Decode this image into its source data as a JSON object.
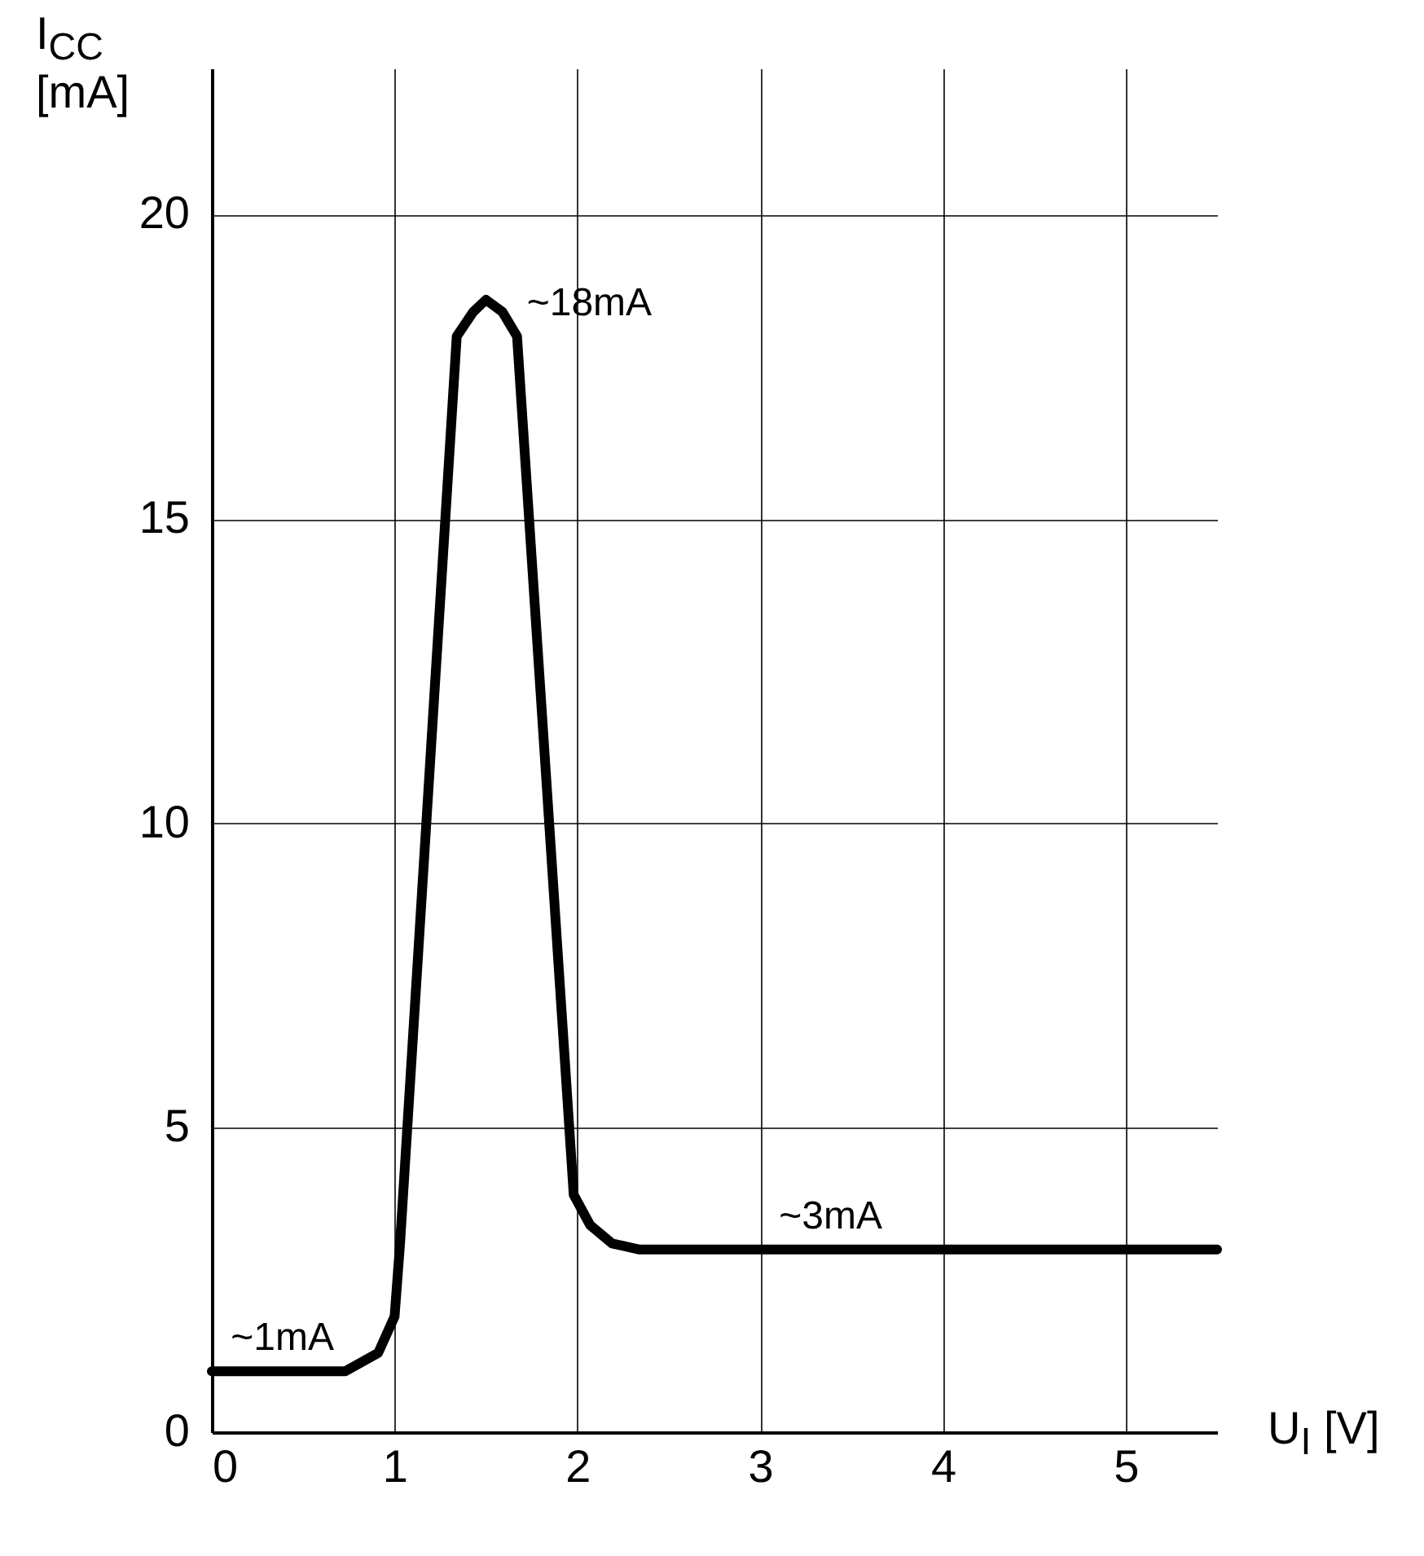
{
  "chart_data": {
    "type": "line",
    "xlabel": "U$_{I}$ [V]",
    "ylabel": "I$_{CC}$ [mA]",
    "x": [
      0,
      0.73,
      0.91,
      1.0,
      1.03,
      1.34,
      1.43,
      1.5,
      1.59,
      1.67,
      1.98,
      2.07,
      2.19,
      2.34,
      5.5
    ],
    "series": [
      {
        "color": "#000000",
        "values": [
          1,
          1,
          1.3,
          1.9,
          3.1,
          18.0,
          18.4,
          18.6,
          18.4,
          18.0,
          3.9,
          3.4,
          3.1,
          3,
          3
        ]
      }
    ],
    "xlim": [
      0,
      5.5
    ],
    "xticks": [
      0,
      1,
      2,
      3,
      4,
      5
    ],
    "ylim": [
      0,
      22.4
    ],
    "yticks": [
      0,
      5,
      10,
      15,
      20
    ],
    "grid": true,
    "marker": "none",
    "line_style": "solid",
    "annotations": [
      {
        "text": "~1mA",
        "x": 0.05,
        "y": 1
      },
      {
        "text": "~18mA",
        "x": 1.67,
        "y": 18.0
      },
      {
        "text": "~3mA",
        "x": 3.05,
        "y": 3
      }
    ]
  }
}
